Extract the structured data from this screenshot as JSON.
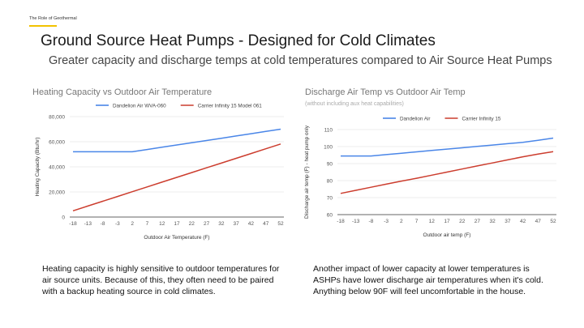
{
  "slide": {
    "eyebrow": "The Role of Geothermal",
    "title": "Ground Source Heat Pumps - Designed for Cold Climates",
    "subtitle": "Greater capacity and discharge temps at cold temperatures compared to Air Source Heat Pumps"
  },
  "captions": {
    "left": "Heating capacity is highly sensitive to outdoor temperatures for air source units. Because of this, they often need to be paired with a backup heating source in cold climates.",
    "right": "Another impact of lower capacity at lower temperatures is ASHPs have lower discharge air temperatures when it's cold. Anything below 90F will feel uncomfortable in the house."
  },
  "colors": {
    "blue": "#4a86e8",
    "red": "#cc3d2e",
    "grid": "#e6e6e6",
    "axis": "#333333"
  },
  "chart_data": [
    {
      "type": "line",
      "title": "Heating Capacity vs Outdoor Air Temperature",
      "subtitle": "",
      "xlabel": "Outdoor Air Temperature (F)",
      "ylabel": "Heating Capacity (Btu/hr)",
      "categories": [
        "-18",
        "-13",
        "-8",
        "-3",
        "2",
        "7",
        "12",
        "17",
        "22",
        "27",
        "32",
        "37",
        "42",
        "47",
        "52"
      ],
      "yticks": [
        "0",
        "20,000",
        "40,000",
        "60,000",
        "80,000"
      ],
      "ylim": [
        0,
        80000
      ],
      "grid": true,
      "legend": "top",
      "series": [
        {
          "name": "Dandelion Air WVA-060",
          "color": "#4a86e8",
          "values": [
            52000,
            52000,
            52000,
            52000,
            52000,
            53800,
            55600,
            57400,
            59200,
            61000,
            62800,
            64600,
            66400,
            68200,
            70000
          ]
        },
        {
          "name": "Carrier Infinity 15 Model 061",
          "color": "#cc3d2e",
          "values": [
            5000,
            8800,
            12600,
            16400,
            20200,
            24000,
            27800,
            31600,
            35400,
            39200,
            43000,
            46800,
            50600,
            54400,
            58200
          ]
        }
      ]
    },
    {
      "type": "line",
      "title": "Discharge Air Temp vs Outdoor Air Temp",
      "subtitle": "(without including aux heat capabilities)",
      "xlabel": "Outdoor air temp (F)",
      "ylabel": "Discharge air temp (F) - heat pump only",
      "categories": [
        "-18",
        "-13",
        "-8",
        "-3",
        "2",
        "7",
        "12",
        "17",
        "22",
        "27",
        "32",
        "37",
        "42",
        "47",
        "52"
      ],
      "yticks": [
        "60",
        "70",
        "80",
        "90",
        "100",
        "110"
      ],
      "ylim": [
        60,
        110
      ],
      "grid": true,
      "legend": "top",
      "series": [
        {
          "name": "Dandelion Air",
          "color": "#4a86e8",
          "values": [
            94.5,
            94.5,
            94.5,
            95.3,
            96.1,
            96.9,
            97.7,
            98.5,
            99.3,
            100.1,
            100.9,
            101.7,
            102.5,
            103.7,
            105
          ]
        },
        {
          "name": "Carrier Infinity 15",
          "color": "#cc3d2e",
          "values": [
            72.5,
            74.3,
            76.1,
            77.9,
            79.7,
            81.4,
            83.2,
            85,
            86.8,
            88.6,
            90.4,
            92.2,
            94,
            95.6,
            97
          ]
        }
      ]
    }
  ]
}
